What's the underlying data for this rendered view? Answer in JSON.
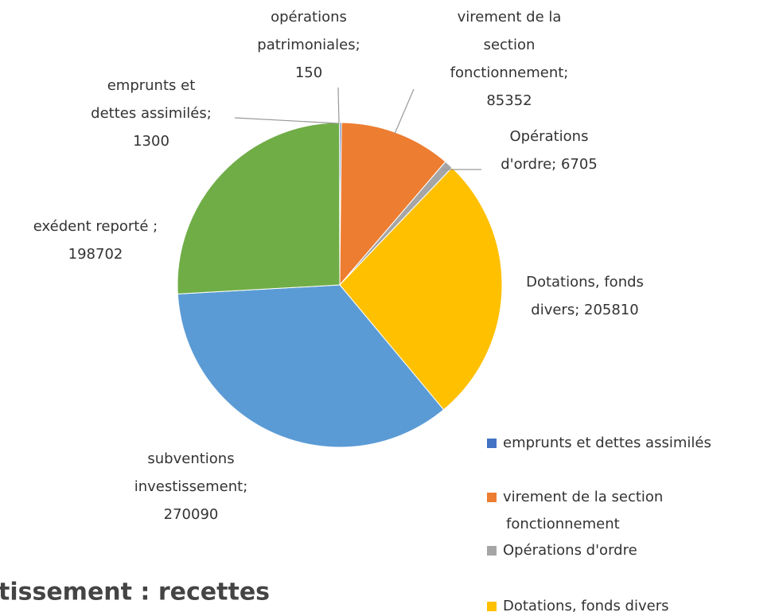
{
  "chart_data": {
    "type": "pie",
    "title": "tissement : recettes",
    "categories": [
      "emprunts et dettes assimilés",
      "virement de la section fonctionnement",
      "Opérations d'ordre",
      "Dotations, fonds divers",
      "subventions investissement",
      "exédent reporté",
      "opérations patrimoniales"
    ],
    "values": [
      1300,
      85352,
      6705,
      205810,
      270090,
      198702,
      150
    ],
    "colors": [
      "#4472c4",
      "#ed7d31",
      "#a5a5a5",
      "#ffc000",
      "#5b9bd5",
      "#70ad47",
      "#264478"
    ],
    "data_labels": [
      [
        "emprunts et",
        "dettes assimilés;",
        "1300"
      ],
      [
        "virement de la",
        "section",
        "fonctionnement;",
        "85352"
      ],
      [
        "Opérations",
        "d'ordre; 6705"
      ],
      [
        "Dotations, fonds",
        "divers; 205810"
      ],
      [
        "subventions",
        "investissement;",
        "270090"
      ],
      [
        "exédent reporté ;",
        "198702"
      ],
      [
        "opérations",
        "patrimoniales;",
        "150"
      ]
    ],
    "legend": [
      [
        "emprunts et dettes assimilés"
      ],
      [
        "virement de la section",
        "fonctionnement"
      ],
      [
        "Opérations d'ordre"
      ],
      [
        "Dotations, fonds divers"
      ]
    ]
  }
}
